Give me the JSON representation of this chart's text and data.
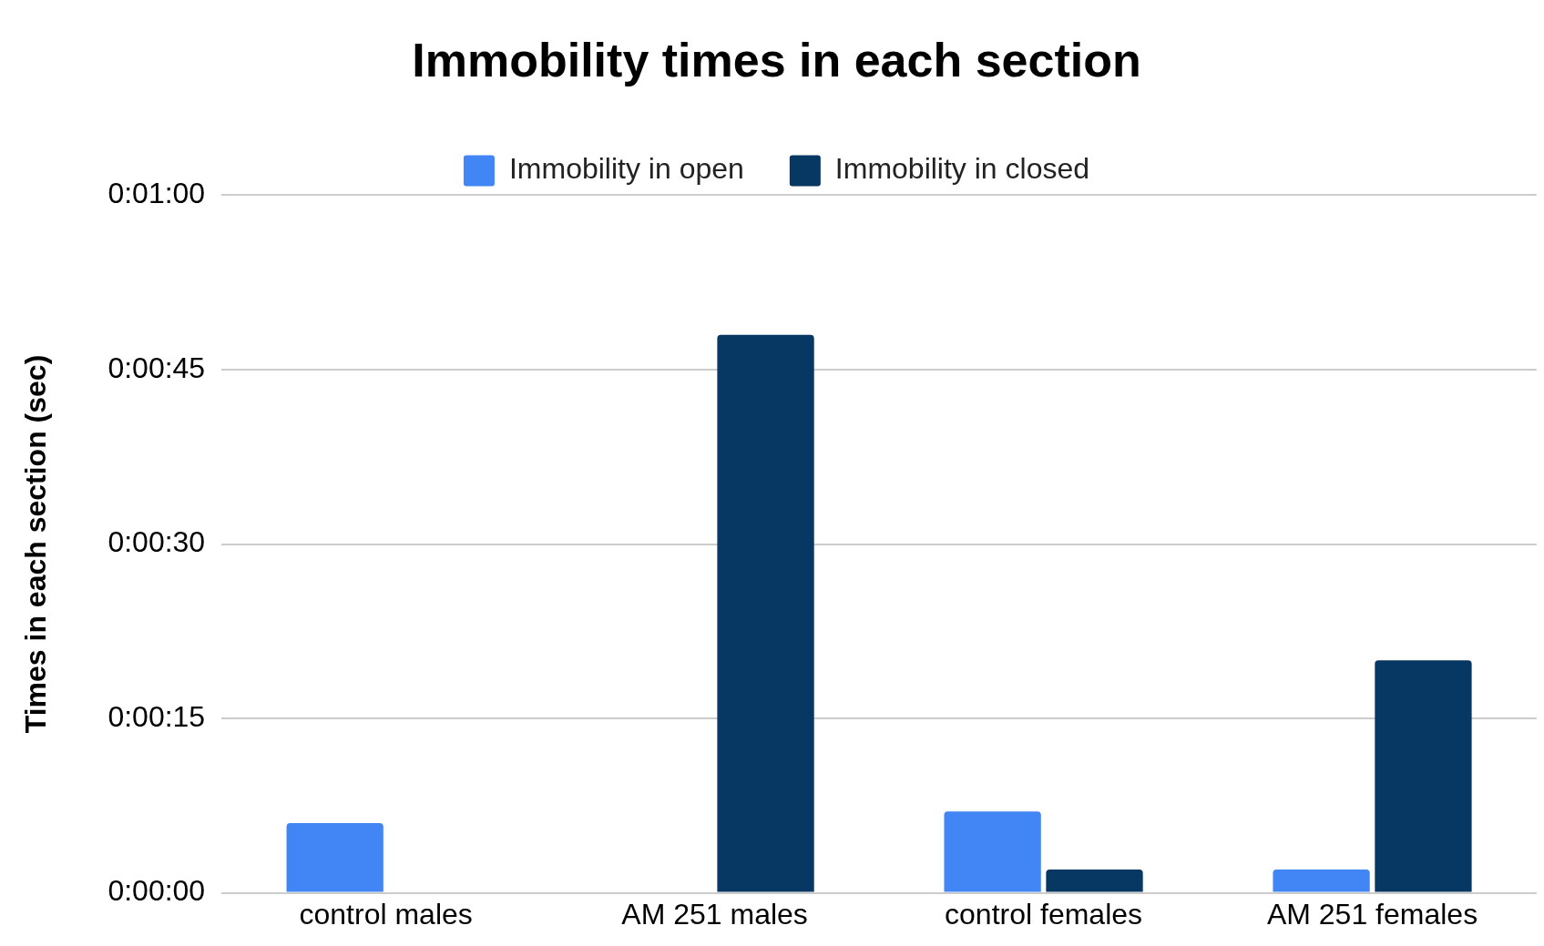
{
  "chart_data": {
    "type": "bar",
    "title": "Immobility times in each section",
    "ylabel": "Times in each section (sec)",
    "categories": [
      "control males",
      "AM 251 males",
      "control females",
      "AM 251 females"
    ],
    "series": [
      {
        "name": "Immobility in open",
        "color": "#4285f4",
        "values": [
          6,
          0,
          7,
          2
        ]
      },
      {
        "name": "Immobility in closed",
        "color": "#073763",
        "values": [
          0,
          48,
          2,
          20
        ]
      }
    ],
    "ylim": [
      0,
      60
    ],
    "yticks": [
      {
        "value": 0,
        "label": "0:00:00"
      },
      {
        "value": 15,
        "label": "0:00:15"
      },
      {
        "value": 30,
        "label": "0:00:30"
      },
      {
        "value": 45,
        "label": "0:00:45"
      },
      {
        "value": 60,
        "label": "0:01:00"
      }
    ],
    "grid": "y",
    "legend": "top"
  }
}
